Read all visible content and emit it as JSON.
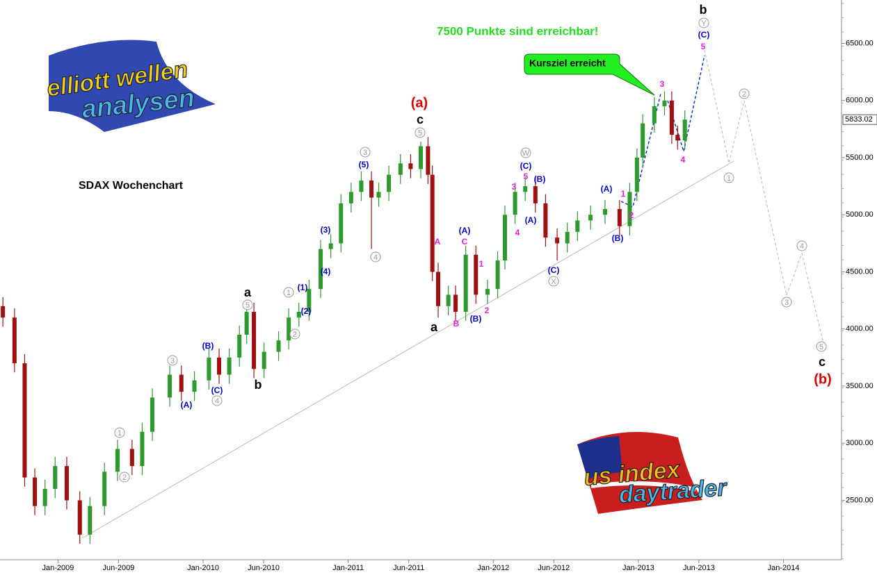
{
  "chart_data": {
    "type": "candlestick",
    "title": "SDAX Wochenchart",
    "headline": "7500 Punkte sind erreichbar!",
    "callout": "Kursziel erreicht",
    "logos": [
      "elliott wellen",
      "analysen",
      "us index",
      "daytrader"
    ],
    "last_value": 5833.02,
    "xlim": [
      2008.6,
      2014.4
    ],
    "xticks": [
      {
        "value": 2009.0,
        "label": "Jan-2009"
      },
      {
        "value": 2009.417,
        "label": "Jun-2009"
      },
      {
        "value": 2010.0,
        "label": "Jan-2010"
      },
      {
        "value": 2010.417,
        "label": "Jun-2010"
      },
      {
        "value": 2011.0,
        "label": "Jan-2011"
      },
      {
        "value": 2011.417,
        "label": "Jun-2011"
      },
      {
        "value": 2012.0,
        "label": "Jan-2012"
      },
      {
        "value": 2012.417,
        "label": "Jun-2012"
      },
      {
        "value": 2013.0,
        "label": "Jan-2013"
      },
      {
        "value": 2013.417,
        "label": "Jun-2013"
      },
      {
        "value": 2014.0,
        "label": "Jan-2014"
      }
    ],
    "ylim": [
      1980,
      6880
    ],
    "yticks": [
      {
        "value": 2500,
        "label": "2500.00"
      },
      {
        "value": 3000,
        "label": "3000.00"
      },
      {
        "value": 3500,
        "label": "3500.00"
      },
      {
        "value": 4000,
        "label": "4000.00"
      },
      {
        "value": 4500,
        "label": "4500.00"
      },
      {
        "value": 5000,
        "label": "5000.00"
      },
      {
        "value": 5500,
        "label": "5500.00"
      },
      {
        "value": 6000,
        "label": "6000.00"
      },
      {
        "value": 6500,
        "label": "6500.00"
      }
    ],
    "up_color": "#2e9a2e",
    "down_color": "#a01010",
    "series": [
      {
        "x": [
          2008.62,
          2008.7,
          2008.77,
          2008.84,
          2008.91,
          2008.98,
          2009.06,
          2009.15,
          2009.22,
          2009.32,
          2009.41,
          2009.51,
          2009.58,
          2009.65,
          2009.77,
          2009.85,
          2009.94,
          2010.04,
          2010.11,
          2010.18,
          2010.25,
          2010.3,
          2010.35,
          2010.42,
          2010.52,
          2010.59,
          2010.66,
          2010.73,
          2010.81,
          2010.88,
          2010.95,
          2011.02,
          2011.09,
          2011.16,
          2011.21,
          2011.28,
          2011.36,
          2011.43,
          2011.5,
          2011.55,
          2011.58,
          2011.62,
          2011.69,
          2011.74,
          2011.81,
          2011.88,
          2011.96,
          2012.03,
          2012.08,
          2012.15,
          2012.22,
          2012.29,
          2012.36,
          2012.44,
          2012.51,
          2012.58,
          2012.67,
          2012.77,
          2012.87,
          2012.94,
          2012.99,
          2013.03,
          2013.11,
          2013.18,
          2013.23,
          2013.27,
          2013.32
        ],
        "open": [
          4200,
          4100,
          3700,
          2700,
          2450,
          2600,
          2800,
          2500,
          2200,
          2450,
          2750,
          2950,
          2800,
          3100,
          3400,
          3600,
          3450,
          3550,
          3750,
          3600,
          3750,
          3950,
          4150,
          3650,
          3800,
          3900,
          4100,
          4150,
          4350,
          4700,
          4750,
          5100,
          5200,
          5300,
          5150,
          5200,
          5350,
          5450,
          5400,
          5600,
          5350,
          4500,
          4200,
          4300,
          4150,
          4650,
          4300,
          4350,
          4600,
          5000,
          5200,
          5250,
          5100,
          4800,
          4750,
          4850,
          4950,
          5000,
          5050,
          4900,
          5200,
          5500,
          5800,
          5950,
          6000,
          5700,
          5650
        ],
        "high": [
          4280,
          4180,
          3780,
          2780,
          2680,
          2880,
          2880,
          2580,
          2530,
          2830,
          3030,
          3030,
          3180,
          3480,
          3680,
          3680,
          3630,
          3830,
          3830,
          3830,
          4030,
          4230,
          4230,
          3880,
          3980,
          4180,
          4230,
          4430,
          4780,
          4830,
          5180,
          5280,
          5380,
          5380,
          5280,
          5430,
          5530,
          5530,
          5640,
          5680,
          5430,
          4580,
          4380,
          4380,
          4730,
          4730,
          4430,
          4680,
          5080,
          5280,
          5330,
          5330,
          5180,
          4880,
          4930,
          5030,
          5080,
          5130,
          5130,
          5280,
          5580,
          5880,
          6030,
          6080,
          6080,
          5780,
          5913
        ],
        "low": [
          4020,
          3620,
          2620,
          2370,
          2370,
          2520,
          2420,
          2120,
          2120,
          2370,
          2670,
          2720,
          2720,
          3020,
          3320,
          3370,
          3370,
          3470,
          3520,
          3520,
          3670,
          3870,
          3570,
          3570,
          3720,
          3820,
          4020,
          4070,
          4270,
          4620,
          4670,
          5020,
          5120,
          4700,
          5070,
          5120,
          5270,
          5320,
          5320,
          5270,
          4420,
          4100,
          4120,
          4070,
          4070,
          4220,
          4220,
          4270,
          4520,
          4920,
          5120,
          5020,
          4720,
          4600,
          4670,
          4770,
          4870,
          4920,
          4820,
          4820,
          5120,
          5420,
          5720,
          5870,
          5620,
          5570,
          5570
        ],
        "close": [
          4100,
          3700,
          2700,
          2450,
          2600,
          2800,
          2500,
          2200,
          2450,
          2750,
          2950,
          2800,
          3100,
          3400,
          3600,
          3450,
          3550,
          3750,
          3600,
          3750,
          3950,
          4150,
          3650,
          3800,
          3900,
          4100,
          4150,
          4350,
          4700,
          4750,
          5100,
          5200,
          5300,
          5150,
          5200,
          5350,
          5450,
          5400,
          5600,
          5350,
          4500,
          4200,
          4300,
          4150,
          4650,
          4300,
          4350,
          4600,
          5000,
          5200,
          5250,
          5100,
          4800,
          4750,
          4850,
          4950,
          5000,
          5050,
          4900,
          5200,
          5500,
          5800,
          5950,
          6000,
          5700,
          5650,
          5833
        ]
      }
    ],
    "annotations": [
      {
        "text": "(a)",
        "color": "#e00000"
      },
      {
        "text": "c",
        "color": "#000000"
      },
      {
        "text": "5",
        "color": "#999999",
        "circled": true
      },
      {
        "text": "3",
        "color": "#999999",
        "circled": true
      },
      {
        "text": "(5)",
        "color": "#0000cc"
      },
      {
        "text": "4",
        "color": "#999999",
        "circled": true
      },
      {
        "text": "(3)",
        "color": "#0000cc"
      },
      {
        "text": "(4)",
        "color": "#0000cc"
      },
      {
        "text": "a",
        "color": "#000000"
      },
      {
        "text": "5",
        "color": "#999999",
        "circled": true
      },
      {
        "text": "1",
        "color": "#999999",
        "circled": true
      },
      {
        "text": "(1)",
        "color": "#0000cc"
      },
      {
        "text": "(2)",
        "color": "#0000cc"
      },
      {
        "text": "2",
        "color": "#999999",
        "circled": true
      },
      {
        "text": "b",
        "color": "#000000"
      },
      {
        "text": "(B)",
        "color": "#0000cc"
      },
      {
        "text": "(C)",
        "color": "#0000cc"
      },
      {
        "text": "4",
        "color": "#999999",
        "circled": true
      },
      {
        "text": "3",
        "color": "#999999",
        "circled": true
      },
      {
        "text": "(A)",
        "color": "#0000cc"
      },
      {
        "text": "1",
        "color": "#999999",
        "circled": true
      },
      {
        "text": "2",
        "color": "#999999",
        "circled": true
      },
      {
        "text": "A",
        "color": "#e020e0"
      },
      {
        "text": "(A)",
        "color": "#0000cc"
      },
      {
        "text": "C",
        "color": "#e020e0"
      },
      {
        "text": "a",
        "color": "#000000"
      },
      {
        "text": "B",
        "color": "#e020e0"
      },
      {
        "text": "(B)",
        "color": "#0000cc"
      },
      {
        "text": "1",
        "color": "#e020e0"
      },
      {
        "text": "2",
        "color": "#e020e0"
      },
      {
        "text": "W",
        "color": "#999999",
        "circled": true
      },
      {
        "text": "(C)",
        "color": "#0000cc"
      },
      {
        "text": "5",
        "color": "#e020e0"
      },
      {
        "text": "3",
        "color": "#e020e0"
      },
      {
        "text": "(B)",
        "color": "#0000cc"
      },
      {
        "text": "4",
        "color": "#e020e0"
      },
      {
        "text": "(A)",
        "color": "#0000cc"
      },
      {
        "text": "(C)",
        "color": "#0000cc"
      },
      {
        "text": "X",
        "color": "#999999",
        "circled": true
      },
      {
        "text": "(A)",
        "color": "#0000cc"
      },
      {
        "text": "1",
        "color": "#e020e0"
      },
      {
        "text": "2",
        "color": "#e020e0"
      },
      {
        "text": "(B)",
        "color": "#0000cc"
      },
      {
        "text": "3",
        "color": "#e020e0"
      },
      {
        "text": "4",
        "color": "#e020e0"
      },
      {
        "text": "b",
        "color": "#000000"
      },
      {
        "text": "Y",
        "color": "#999999",
        "circled": true
      },
      {
        "text": "(C)",
        "color": "#0000cc"
      },
      {
        "text": "5",
        "color": "#e020e0"
      },
      {
        "text": "2",
        "color": "#999999",
        "circled": true
      },
      {
        "text": "1",
        "color": "#999999",
        "circled": true
      },
      {
        "text": "4",
        "color": "#999999",
        "circled": true
      },
      {
        "text": "3",
        "color": "#999999",
        "circled": true
      },
      {
        "text": "5",
        "color": "#999999",
        "circled": true
      },
      {
        "text": "c",
        "color": "#000000"
      },
      {
        "text": "(b)",
        "color": "#e00000"
      }
    ]
  }
}
